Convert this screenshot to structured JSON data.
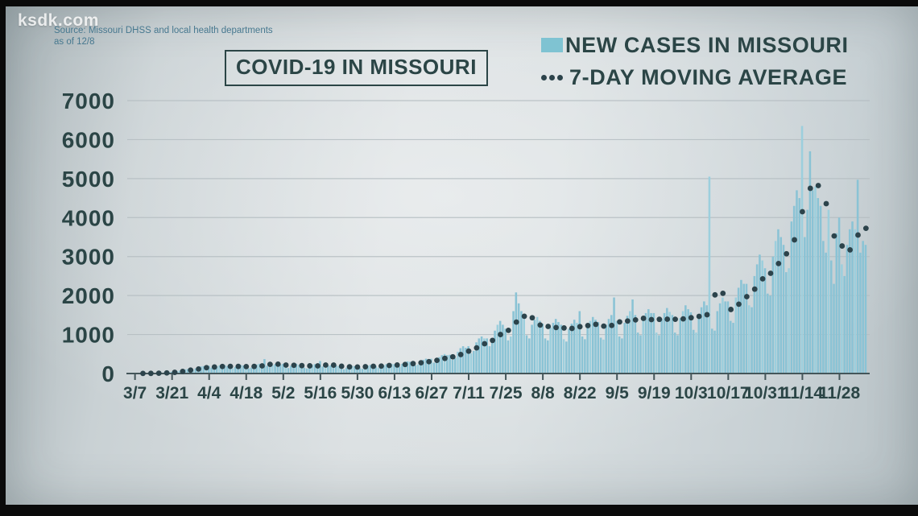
{
  "branding": {
    "logo_text": "ksdk.com"
  },
  "source": {
    "line1": "Source: Missouri DHSS and local health departments",
    "line2": "as of 12/8"
  },
  "title": "COVID-19 IN MISSOURI",
  "legend": {
    "bars_label": "NEW CASES IN MISSOURI",
    "avg_label": "7-DAY MOVING AVERAGE"
  },
  "colors": {
    "bar": "#8ac3d5",
    "bar_alt": "#9ccfdd",
    "avg_dot": "#2c434b",
    "text_dark": "#2b4546",
    "source_text": "#47788f",
    "grid": "#b4bdc1",
    "axis": "#44565a",
    "legend_swatch": "#7fc3d2",
    "logo": "#ffffff"
  },
  "chart_data": {
    "type": "bar",
    "title": "COVID-19 IN MISSOURI",
    "xlabel": "",
    "ylabel": "",
    "ylim": [
      0,
      7000
    ],
    "y_ticks": [
      0,
      1000,
      2000,
      3000,
      4000,
      5000,
      6000,
      7000
    ],
    "grid": "horizontal",
    "legend_position": "top-right",
    "x_start_date": "3/7",
    "x_end_date": "12/8",
    "x_frequency": "daily",
    "x_tick_interval_days": 14,
    "x_tick_labels": [
      "3/7",
      "3/21",
      "4/4",
      "4/18",
      "5/2",
      "5/16",
      "5/30",
      "6/13",
      "6/27",
      "7/11",
      "7/25",
      "8/8",
      "8/22",
      "9/5",
      "9/19",
      "10/3",
      "10/17",
      "10/31",
      "11/14",
      "11/28"
    ],
    "series": [
      {
        "name": "NEW CASES IN MISSOURI",
        "type": "bar",
        "values": [
          2,
          1,
          3,
          2,
          4,
          6,
          8,
          10,
          8,
          14,
          18,
          24,
          30,
          38,
          45,
          40,
          60,
          75,
          90,
          105,
          115,
          125,
          90,
          130,
          160,
          180,
          190,
          170,
          200,
          150,
          120,
          180,
          210,
          230,
          215,
          190,
          140,
          130,
          170,
          200,
          220,
          205,
          180,
          130,
          150,
          190,
          230,
          250,
          240,
          370,
          200,
          160,
          210,
          240,
          260,
          230,
          250,
          170,
          140,
          200,
          230,
          250,
          220,
          210,
          150,
          130,
          190,
          220,
          240,
          230,
          320,
          180,
          140,
          200,
          210,
          230,
          210,
          190,
          130,
          110,
          150,
          180,
          200,
          190,
          210,
          140,
          120,
          180,
          200,
          220,
          230,
          200,
          150,
          160,
          210,
          240,
          260,
          250,
          240,
          170,
          180,
          250,
          280,
          310,
          300,
          290,
          210,
          230,
          310,
          350,
          380,
          360,
          380,
          280,
          310,
          420,
          470,
          500,
          470,
          480,
          350,
          400,
          560,
          650,
          700,
          660,
          700,
          520,
          580,
          800,
          900,
          950,
          900,
          900,
          700,
          800,
          1100,
          1250,
          1350,
          1250,
          1150,
          850,
          950,
          1600,
          2080,
          1800,
          1600,
          1400,
          980,
          900,
          1250,
          1380,
          1450,
          1350,
          1280,
          900,
          850,
          1180,
          1300,
          1400,
          1320,
          1250,
          880,
          820,
          1150,
          1280,
          1380,
          1300,
          1600,
          950,
          880,
          1220,
          1350,
          1450,
          1380,
          1320,
          920,
          870,
          1250,
          1400,
          1500,
          1950,
          1350,
          950,
          900,
          1300,
          1480,
          1600,
          1900,
          1500,
          1050,
          980,
          1400,
          1550,
          1650,
          1550,
          1550,
          1050,
          980,
          1400,
          1550,
          1680,
          1580,
          1500,
          1050,
          980,
          1420,
          1600,
          1750,
          1650,
          1570,
          1120,
          1050,
          1520,
          1700,
          1850,
          1750,
          5050,
          1150,
          1100,
          1600,
          1800,
          1950,
          1850,
          1850,
          1350,
          1300,
          1950,
          2200,
          2400,
          2300,
          2300,
          1750,
          1700,
          2500,
          2800,
          3050,
          2900,
          2700,
          2050,
          2000,
          3000,
          3400,
          3700,
          3500,
          3300,
          2600,
          2700,
          3900,
          4300,
          4700,
          4500,
          6350,
          3500,
          4200,
          5700,
          4700,
          4800,
          4500,
          4300,
          3400,
          3100,
          4200,
          2900,
          2300,
          3600,
          4000,
          2800,
          2500,
          3300,
          3700,
          3900,
          3700,
          4970,
          3100,
          3400,
          3300
        ]
      },
      {
        "name": "7-DAY MOVING AVERAGE",
        "type": "dotted-line",
        "derived": "7-day trailing moving average of the bar series, plotted as dots every 3 days"
      }
    ]
  }
}
